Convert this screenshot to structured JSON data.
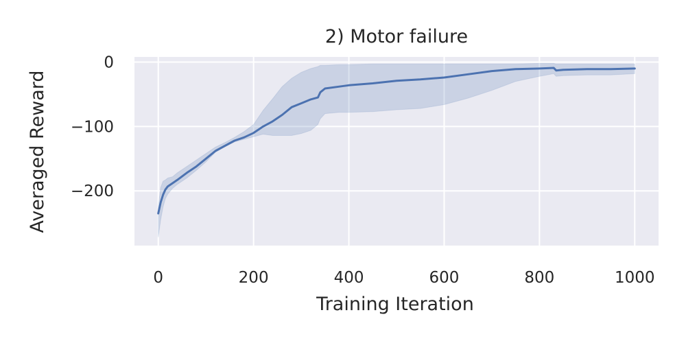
{
  "chart_data": {
    "type": "line",
    "title": "2) Motor failure",
    "xlabel": "Training Iteration",
    "ylabel": "Averaged Reward",
    "xlim": [
      -50,
      1050
    ],
    "ylim": [
      -285,
      8
    ],
    "xticks": [
      0,
      200,
      400,
      600,
      800,
      1000
    ],
    "xtick_labels": [
      "0",
      "200",
      "400",
      "600",
      "800",
      "1000"
    ],
    "yticks": [
      0,
      -100,
      -200
    ],
    "ytick_labels": [
      "0",
      "−100",
      "−200"
    ],
    "grid": true,
    "colors": {
      "line": "#4c72b0",
      "band": "#4c72b0",
      "background": "#eaeaf2",
      "grid": "#ffffff"
    },
    "series": [
      {
        "x": [
          0,
          5,
          10,
          15,
          20,
          30,
          40,
          60,
          80,
          100,
          120,
          140,
          160,
          180,
          200,
          220,
          240,
          260,
          280,
          300,
          320,
          335,
          340,
          350,
          380,
          400,
          450,
          500,
          550,
          600,
          650,
          700,
          750,
          800,
          830,
          835,
          850,
          900,
          950,
          1000
        ],
        "y": [
          -235,
          -218,
          -206,
          -198,
          -193,
          -188,
          -183,
          -172,
          -162,
          -150,
          -138,
          -130,
          -122,
          -117,
          -110,
          -100,
          -92,
          -82,
          -70,
          -64,
          -58,
          -55,
          -47,
          -41,
          -38,
          -36,
          -33,
          -29,
          -27,
          -24,
          -19,
          -14,
          -11,
          -10,
          -9,
          -13,
          -12,
          -11,
          -11,
          -10
        ],
        "lower": [
          -272,
          -245,
          -225,
          -212,
          -205,
          -196,
          -190,
          -180,
          -168,
          -155,
          -140,
          -131,
          -124,
          -120,
          -116,
          -112,
          -114,
          -114,
          -114,
          -111,
          -106,
          -97,
          -88,
          -80,
          -78,
          -78,
          -77,
          -74,
          -72,
          -66,
          -56,
          -44,
          -30,
          -22,
          -18,
          -22,
          -21,
          -20,
          -20,
          -18
        ],
        "upper": [
          -225,
          -195,
          -185,
          -183,
          -180,
          -178,
          -172,
          -162,
          -152,
          -142,
          -132,
          -125,
          -117,
          -108,
          -97,
          -75,
          -57,
          -38,
          -25,
          -16,
          -10,
          -7,
          -5,
          -5,
          -4,
          -4,
          -3,
          -3,
          -3,
          -3,
          -3,
          -3,
          -3,
          -2,
          -2,
          -3,
          -3,
          -3,
          -3,
          -3
        ]
      }
    ]
  }
}
